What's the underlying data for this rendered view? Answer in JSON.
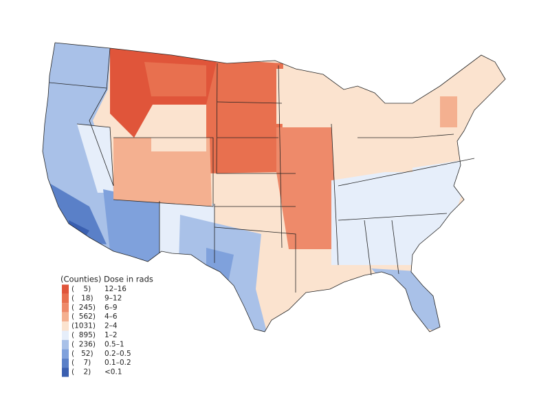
{
  "legend": {
    "title": "(Counties) Dose in rads",
    "items": [
      {
        "count": "(    5)",
        "range": "12–16",
        "color": "#e0553a"
      },
      {
        "count": "(   18)",
        "range": "9–12",
        "color": "#e8704f"
      },
      {
        "count": "(  245)",
        "range": "6–9",
        "color": "#ee8a6a"
      },
      {
        "count": "(  562)",
        "range": "4–6",
        "color": "#f4b090"
      },
      {
        "count": "(1031)",
        "range": "2–4",
        "color": "#fbe3cf"
      },
      {
        "count": "(  895)",
        "range": "1–2",
        "color": "#e6eefa"
      },
      {
        "count": "(  236)",
        "range": "0.5–1",
        "color": "#a9c1e8"
      },
      {
        "count": "(   52)",
        "range": "0.2–0.5",
        "color": "#7fa1dc"
      },
      {
        "count": "(    7)",
        "range": "0.1–0.2",
        "color": "#5a80c8"
      },
      {
        "count": "(    2)",
        "range": "<0.1",
        "color": "#3a5fb0"
      }
    ]
  }
}
